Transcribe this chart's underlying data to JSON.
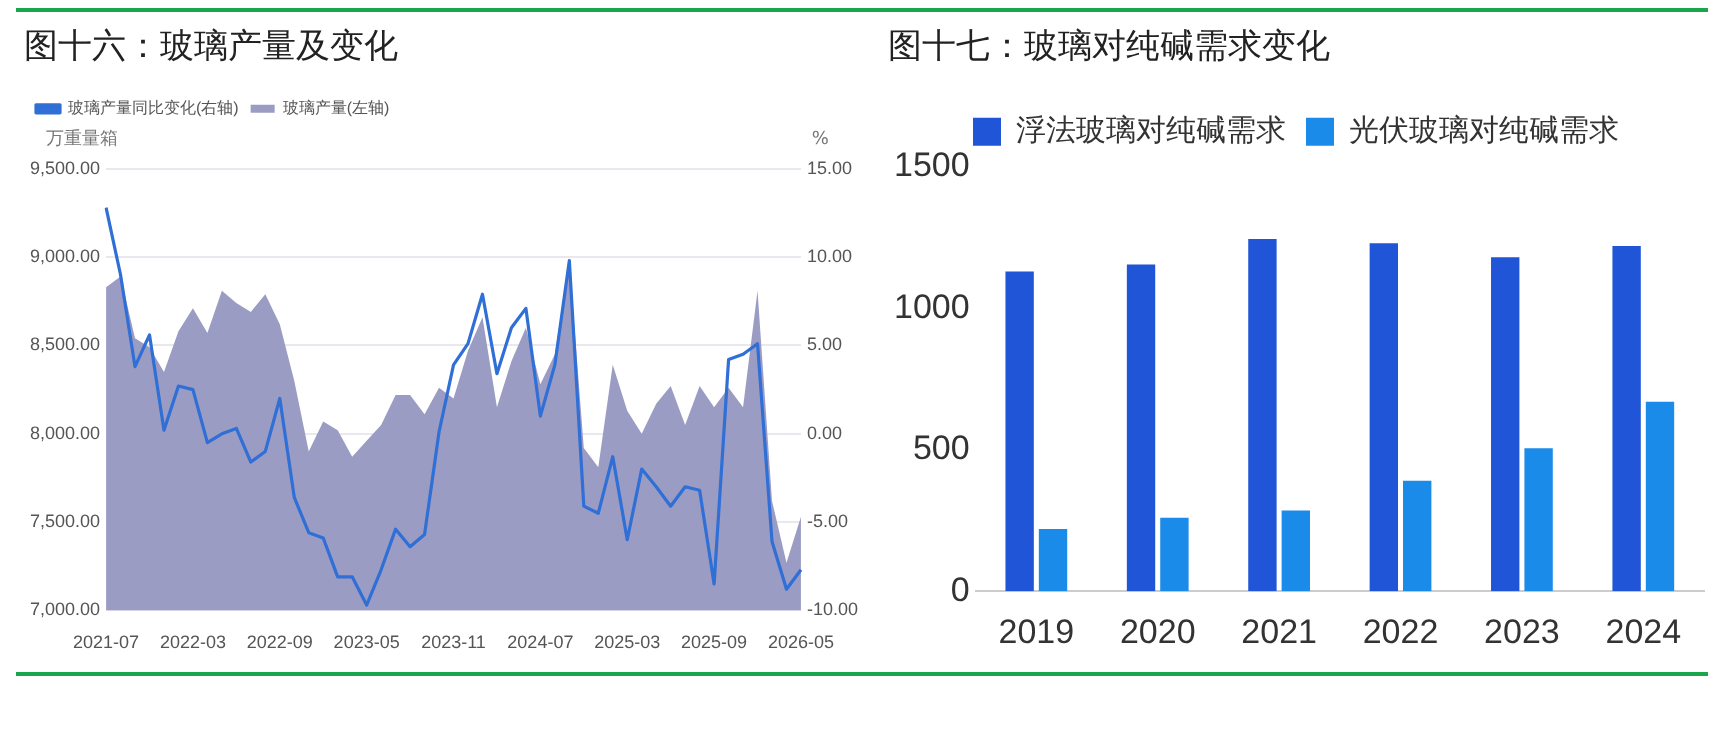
{
  "chart_data": [
    {
      "type": "area",
      "title": "图十六：玻璃产量及变化",
      "ylabel": "万重量箱",
      "y2label": "%",
      "legend": "top left",
      "grid": "y",
      "marker": "none",
      "categories": [
        "2021-07",
        null,
        null,
        null,
        null,
        null,
        "2022-03",
        null,
        null,
        null,
        null,
        null,
        "2022-09",
        null,
        null,
        null,
        null,
        null,
        "2023-05",
        null,
        null,
        null,
        null,
        null,
        "2023-11",
        null,
        null,
        null,
        null,
        null,
        "2024-07",
        null,
        null,
        null,
        null,
        null,
        "2025-03",
        null,
        null,
        null,
        null,
        null,
        "2025-09",
        null,
        null,
        null,
        null,
        null,
        "2026-05"
      ],
      "ylim": [
        7000,
        9500
      ],
      "yticks": [
        {
          "value": 7000,
          "label": "7,000.00"
        },
        {
          "value": 7500,
          "label": "7,500.00"
        },
        {
          "value": 8000,
          "label": "8,000.00"
        },
        {
          "value": 8500,
          "label": "8,500.00"
        },
        {
          "value": 9000,
          "label": "9,000.00"
        },
        {
          "value": 9500,
          "label": "9,500.00"
        }
      ],
      "y2lim": [
        -10,
        15
      ],
      "y2ticks": [
        {
          "value": -10,
          "label": "-10.00"
        },
        {
          "value": -5,
          "label": "-5.00"
        },
        {
          "value": 0,
          "label": "0.00"
        },
        {
          "value": 5,
          "label": "5.00"
        },
        {
          "value": 10,
          "label": "10.00"
        },
        {
          "value": 15,
          "label": "15.00"
        }
      ],
      "series": [
        {
          "name": "玻璃产量(左轴)",
          "type": "area",
          "color": "#9a9cc4",
          "values": [
            8830,
            8890,
            8540,
            8490,
            8350,
            8580,
            8710,
            8570,
            8810,
            8740,
            8690,
            8790,
            8620,
            8300,
            7900,
            8070,
            8020,
            7870,
            7960,
            8050,
            8220,
            8220,
            8110,
            8260,
            8200,
            8470,
            8660,
            8150,
            8410,
            8600,
            8280,
            8450,
            8980,
            7920,
            7810,
            8390,
            8130,
            8000,
            8170,
            8270,
            8050,
            8270,
            8150,
            8260,
            8150,
            8810,
            7620,
            7270,
            7530
          ]
        },
        {
          "name": "玻璃产量同比变化(右轴)",
          "type": "line",
          "axis": "y2",
          "color": "#2f6fd6",
          "values": [
            12.8,
            9.0,
            3.8,
            5.6,
            0.2,
            2.7,
            2.5,
            -0.5,
            0.0,
            0.3,
            -1.6,
            -1.0,
            2.0,
            -3.6,
            -5.6,
            -5.9,
            -8.1,
            -8.1,
            -9.7,
            -7.7,
            -5.4,
            -6.4,
            -5.7,
            0.1,
            3.9,
            5.1,
            7.9,
            3.4,
            6.0,
            7.1,
            1.0,
            3.9,
            9.8,
            -4.1,
            -4.5,
            -1.3,
            -6.0,
            -2.0,
            -3.0,
            -4.1,
            -3.0,
            -3.2,
            -8.5,
            4.2,
            4.5,
            5.1,
            -6.1,
            -8.8,
            -7.7
          ]
        }
      ]
    },
    {
      "type": "bar",
      "title": "图十七：玻璃对纯碱需求变化",
      "legend": "top",
      "grid": false,
      "categories": [
        "2019",
        "2020",
        "2021",
        "2022",
        "2023",
        "2024"
      ],
      "ylim": [
        0,
        1500
      ],
      "yticks": [
        0,
        500,
        1000,
        1500
      ],
      "series": [
        {
          "name": "浮法玻璃对纯碱需求",
          "color": "#1f55d6",
          "values": [
            1130,
            1155,
            1245,
            1230,
            1180,
            1220
          ]
        },
        {
          "name": "光伏玻璃对纯碱需求",
          "color": "#1a8be8",
          "values": [
            220,
            260,
            285,
            390,
            505,
            670
          ]
        }
      ]
    }
  ]
}
